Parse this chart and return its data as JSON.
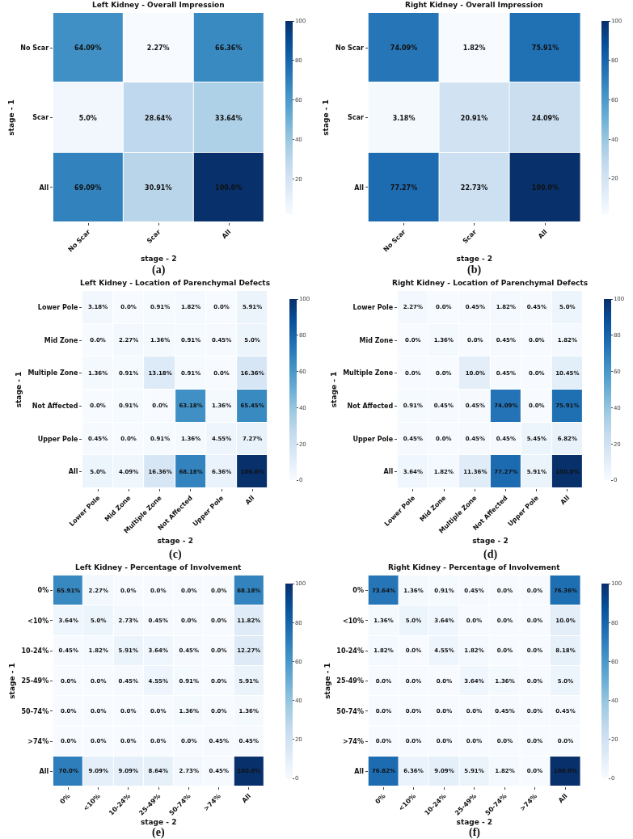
{
  "chart_data": [
    {
      "type": "heatmap",
      "title": "Left Kidney - Overall Impression",
      "xlabel": "stage - 2",
      "ylabel": "stage - 1",
      "categories": [
        "No Scar",
        "Scar",
        "All"
      ],
      "y_categories": [
        "No Scar",
        "Scar",
        "All"
      ],
      "cells": [
        [
          64.09,
          2.27,
          66.36
        ],
        [
          5.0,
          28.64,
          33.64
        ],
        [
          69.09,
          30.91,
          100.0
        ]
      ],
      "cell_labels": [
        [
          "64.09%",
          "2.27%",
          "66.36%"
        ],
        [
          "5.0%",
          "28.64%",
          "33.64%"
        ],
        [
          "69.09%",
          "30.91%",
          "100.0%"
        ]
      ],
      "clim": [
        2.27,
        100
      ],
      "cticks": [
        20,
        40,
        60,
        80,
        100
      ],
      "annotations": [
        "(a)"
      ]
    },
    {
      "type": "heatmap",
      "title": "Right Kidney - Overall Impression",
      "xlabel": "stage - 2",
      "ylabel": "stage - 1",
      "categories": [
        "No Scar",
        "Scar",
        "All"
      ],
      "y_categories": [
        "No Scar",
        "Scar",
        "All"
      ],
      "cells": [
        [
          74.09,
          1.82,
          75.91
        ],
        [
          3.18,
          20.91,
          24.09
        ],
        [
          77.27,
          22.73,
          100.0
        ]
      ],
      "cell_labels": [
        [
          "74.09%",
          "1.82%",
          "75.91%"
        ],
        [
          "3.18%",
          "20.91%",
          "24.09%"
        ],
        [
          "77.27%",
          "22.73%",
          "100.0%"
        ]
      ],
      "clim": [
        1.82,
        100
      ],
      "cticks": [
        20,
        40,
        60,
        80,
        100
      ],
      "annotations": [
        "(b)"
      ]
    },
    {
      "type": "heatmap",
      "title": "Left Kidney - Location of Parenchymal Defects",
      "xlabel": "stage - 2",
      "ylabel": "stage - 1",
      "categories": [
        "Lower Pole",
        "Mid Zone",
        "Multiple Zone",
        "Not Affected",
        "Upper Pole",
        "All"
      ],
      "y_categories": [
        "Lower Pole",
        "Mid Zone",
        "Multiple Zone",
        "Not Affected",
        "Upper Pole",
        "All"
      ],
      "cells": [
        [
          3.18,
          0.0,
          0.91,
          1.82,
          0.0,
          5.91
        ],
        [
          0.0,
          2.27,
          1.36,
          0.91,
          0.45,
          5.0
        ],
        [
          1.36,
          0.91,
          13.18,
          0.91,
          0.0,
          16.36
        ],
        [
          0.0,
          0.91,
          0.0,
          63.18,
          1.36,
          65.45
        ],
        [
          0.45,
          0.0,
          0.91,
          1.36,
          4.55,
          7.27
        ],
        [
          5.0,
          4.09,
          16.36,
          68.18,
          6.36,
          100.0
        ]
      ],
      "cell_labels": [
        [
          "3.18%",
          "0.0%",
          "0.91%",
          "1.82%",
          "0.0%",
          "5.91%"
        ],
        [
          "0.0%",
          "2.27%",
          "1.36%",
          "0.91%",
          "0.45%",
          "5.0%"
        ],
        [
          "1.36%",
          "0.91%",
          "13.18%",
          "0.91%",
          "0.0%",
          "16.36%"
        ],
        [
          "0.0%",
          "0.91%",
          "0.0%",
          "63.18%",
          "1.36%",
          "65.45%"
        ],
        [
          "0.45%",
          "0.0%",
          "0.91%",
          "1.36%",
          "4.55%",
          "7.27%"
        ],
        [
          "5.0%",
          "4.09%",
          "16.36%",
          "68.18%",
          "6.36%",
          "100.0%"
        ]
      ],
      "clim": [
        0,
        100
      ],
      "cticks": [
        0,
        20,
        40,
        60,
        80,
        100
      ],
      "annotations": [
        "(c)"
      ]
    },
    {
      "type": "heatmap",
      "title": "Right Kidney - Location of Parenchymal Defects",
      "xlabel": "stage - 2",
      "ylabel": "stage - 1",
      "categories": [
        "Lower Pole",
        "Mid Zone",
        "Multiple Zone",
        "Not Affected",
        "Upper Pole",
        "All"
      ],
      "y_categories": [
        "Lower Pole",
        "Mid Zone",
        "Multiple Zone",
        "Not Affected",
        "Upper Pole",
        "All"
      ],
      "cells": [
        [
          2.27,
          0.0,
          0.45,
          1.82,
          0.45,
          5.0
        ],
        [
          0.0,
          1.36,
          0.0,
          0.45,
          0.0,
          1.82
        ],
        [
          0.0,
          0.0,
          10.0,
          0.45,
          0.0,
          10.45
        ],
        [
          0.91,
          0.45,
          0.45,
          74.09,
          0.0,
          75.91
        ],
        [
          0.45,
          0.0,
          0.45,
          0.45,
          5.45,
          6.82
        ],
        [
          3.64,
          1.82,
          11.36,
          77.27,
          5.91,
          100.0
        ]
      ],
      "cell_labels": [
        [
          "2.27%",
          "0.0%",
          "0.45%",
          "1.82%",
          "0.45%",
          "5.0%"
        ],
        [
          "0.0%",
          "1.36%",
          "0.0%",
          "0.45%",
          "0.0%",
          "1.82%"
        ],
        [
          "0.0%",
          "0.0%",
          "10.0%",
          "0.45%",
          "0.0%",
          "10.45%"
        ],
        [
          "0.91%",
          "0.45%",
          "0.45%",
          "74.09%",
          "0.0%",
          "75.91%"
        ],
        [
          "0.45%",
          "0.0%",
          "0.45%",
          "0.45%",
          "5.45%",
          "6.82%"
        ],
        [
          "3.64%",
          "1.82%",
          "11.36%",
          "77.27%",
          "5.91%",
          "100.0%"
        ]
      ],
      "clim": [
        0,
        100
      ],
      "cticks": [
        0,
        20,
        40,
        60,
        80,
        100
      ],
      "annotations": [
        "(d)"
      ]
    },
    {
      "type": "heatmap",
      "title": "Left Kidney - Percentage of Involvement",
      "xlabel": "stage - 2",
      "ylabel": "stage - 1",
      "categories": [
        "0%",
        "<10%",
        "10-24%",
        "25-49%",
        "50-74%",
        ">74%",
        "All"
      ],
      "y_categories": [
        "0%",
        "<10%",
        "10-24%",
        "25-49%",
        "50-74%",
        ">74%",
        "All"
      ],
      "cells": [
        [
          65.91,
          2.27,
          0.0,
          0.0,
          0.0,
          0.0,
          68.18
        ],
        [
          3.64,
          5.0,
          2.73,
          0.45,
          0.0,
          0.0,
          11.82
        ],
        [
          0.45,
          1.82,
          5.91,
          3.64,
          0.45,
          0.0,
          12.27
        ],
        [
          0.0,
          0.0,
          0.45,
          4.55,
          0.91,
          0.0,
          5.91
        ],
        [
          0.0,
          0.0,
          0.0,
          0.0,
          1.36,
          0.0,
          1.36
        ],
        [
          0.0,
          0.0,
          0.0,
          0.0,
          0.0,
          0.45,
          0.45
        ],
        [
          70.0,
          9.09,
          9.09,
          8.64,
          2.73,
          0.45,
          100.0
        ]
      ],
      "cell_labels": [
        [
          "65.91%",
          "2.27%",
          "0.0%",
          "0.0%",
          "0.0%",
          "0.0%",
          "68.18%"
        ],
        [
          "3.64%",
          "5.0%",
          "2.73%",
          "0.45%",
          "0.0%",
          "0.0%",
          "11.82%"
        ],
        [
          "0.45%",
          "1.82%",
          "5.91%",
          "3.64%",
          "0.45%",
          "0.0%",
          "12.27%"
        ],
        [
          "0.0%",
          "0.0%",
          "0.45%",
          "4.55%",
          "0.91%",
          "0.0%",
          "5.91%"
        ],
        [
          "0.0%",
          "0.0%",
          "0.0%",
          "0.0%",
          "1.36%",
          "0.0%",
          "1.36%"
        ],
        [
          "0.0%",
          "0.0%",
          "0.0%",
          "0.0%",
          "0.0%",
          "0.45%",
          "0.45%"
        ],
        [
          "70.0%",
          "9.09%",
          "9.09%",
          "8.64%",
          "2.73%",
          "0.45%",
          "100.0%"
        ]
      ],
      "clim": [
        0,
        100
      ],
      "cticks": [
        0,
        20,
        40,
        60,
        80,
        100
      ],
      "annotations": [
        "(e)"
      ]
    },
    {
      "type": "heatmap",
      "title": "Right Kidney - Percentage of Involvement",
      "xlabel": "stage - 2",
      "ylabel": "stage - 1",
      "categories": [
        "0%",
        "<10%",
        "10-24%",
        "25-49%",
        "50-74%",
        ">74%",
        "All"
      ],
      "y_categories": [
        "0%",
        "<10%",
        "10-24%",
        "25-49%",
        "50-74%",
        ">74%",
        "All"
      ],
      "cells": [
        [
          73.64,
          1.36,
          0.91,
          0.45,
          0.0,
          0.0,
          76.36
        ],
        [
          1.36,
          5.0,
          3.64,
          0.0,
          0.0,
          0.0,
          10.0
        ],
        [
          1.82,
          0.0,
          4.55,
          1.82,
          0.0,
          0.0,
          8.18
        ],
        [
          0.0,
          0.0,
          0.0,
          3.64,
          1.36,
          0.0,
          5.0
        ],
        [
          0.0,
          0.0,
          0.0,
          0.0,
          0.45,
          0.0,
          0.45
        ],
        [
          0.0,
          0.0,
          0.0,
          0.0,
          0.0,
          0.0,
          0.0
        ],
        [
          76.82,
          6.36,
          9.09,
          5.91,
          1.82,
          0.0,
          100.0
        ]
      ],
      "cell_labels": [
        [
          "73.64%",
          "1.36%",
          "0.91%",
          "0.45%",
          "0.0%",
          "0.0%",
          "76.36%"
        ],
        [
          "1.36%",
          "5.0%",
          "3.64%",
          "0.0%",
          "0.0%",
          "0.0%",
          "10.0%"
        ],
        [
          "1.82%",
          "0.0%",
          "4.55%",
          "1.82%",
          "0.0%",
          "0.0%",
          "8.18%"
        ],
        [
          "0.0%",
          "0.0%",
          "0.0%",
          "3.64%",
          "1.36%",
          "0.0%",
          "5.0%"
        ],
        [
          "0.0%",
          "0.0%",
          "0.0%",
          "0.0%",
          "0.45%",
          "0.0%",
          "0.45%"
        ],
        [
          "0.0%",
          "0.0%",
          "0.0%",
          "0.0%",
          "0.0%",
          "0.0%",
          "0.0%"
        ],
        [
          "76.82%",
          "6.36%",
          "9.09%",
          "5.91%",
          "1.82%",
          "0.0%",
          "100.0%"
        ]
      ],
      "clim": [
        0,
        100
      ],
      "cticks": [
        0,
        20,
        40,
        60,
        80,
        100
      ],
      "annotations": [
        "(f)"
      ]
    }
  ]
}
